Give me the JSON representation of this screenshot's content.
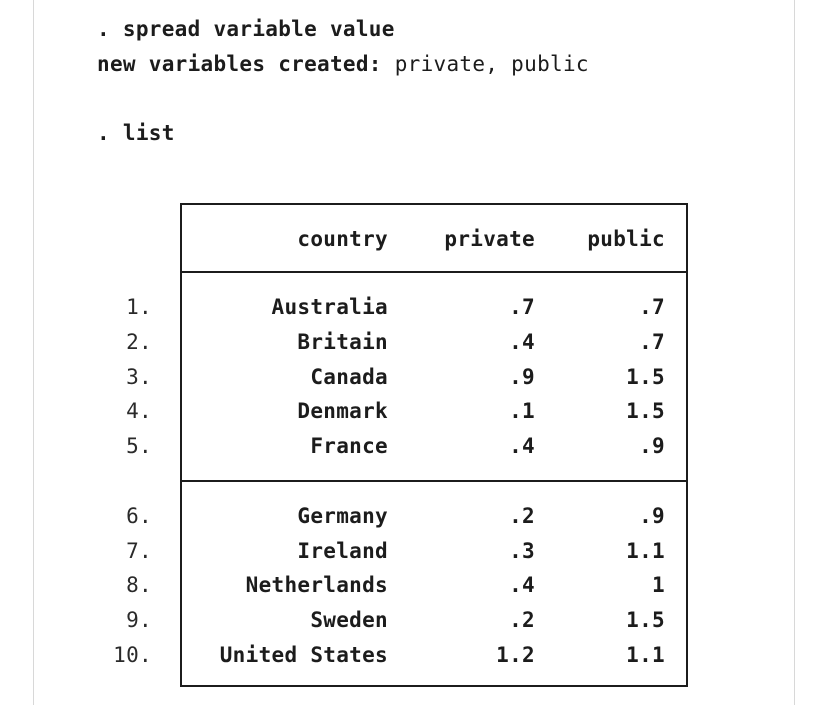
{
  "console": {
    "cmd1": ". spread variable value",
    "out_label": "new variables created:",
    "out_value": " private, public",
    "cmd2": ". list"
  },
  "table": {
    "headers": [
      "country",
      "private",
      "public"
    ],
    "rows": [
      {
        "n": "1.",
        "country": "Australia",
        "private": ".7",
        "public": ".7"
      },
      {
        "n": "2.",
        "country": "Britain",
        "private": ".4",
        "public": ".7"
      },
      {
        "n": "3.",
        "country": "Canada",
        "private": ".9",
        "public": "1.5"
      },
      {
        "n": "4.",
        "country": "Denmark",
        "private": ".1",
        "public": "1.5"
      },
      {
        "n": "5.",
        "country": "France",
        "private": ".4",
        "public": ".9"
      },
      {
        "n": "6.",
        "country": "Germany",
        "private": ".2",
        "public": ".9"
      },
      {
        "n": "7.",
        "country": "Ireland",
        "private": ".3",
        "public": "1.1"
      },
      {
        "n": "8.",
        "country": "Netherlands",
        "private": ".4",
        "public": "1"
      },
      {
        "n": "9.",
        "country": "Sweden",
        "private": ".2",
        "public": "1.5"
      },
      {
        "n": "10.",
        "country": "United States",
        "private": "1.2",
        "public": "1.1"
      }
    ]
  }
}
